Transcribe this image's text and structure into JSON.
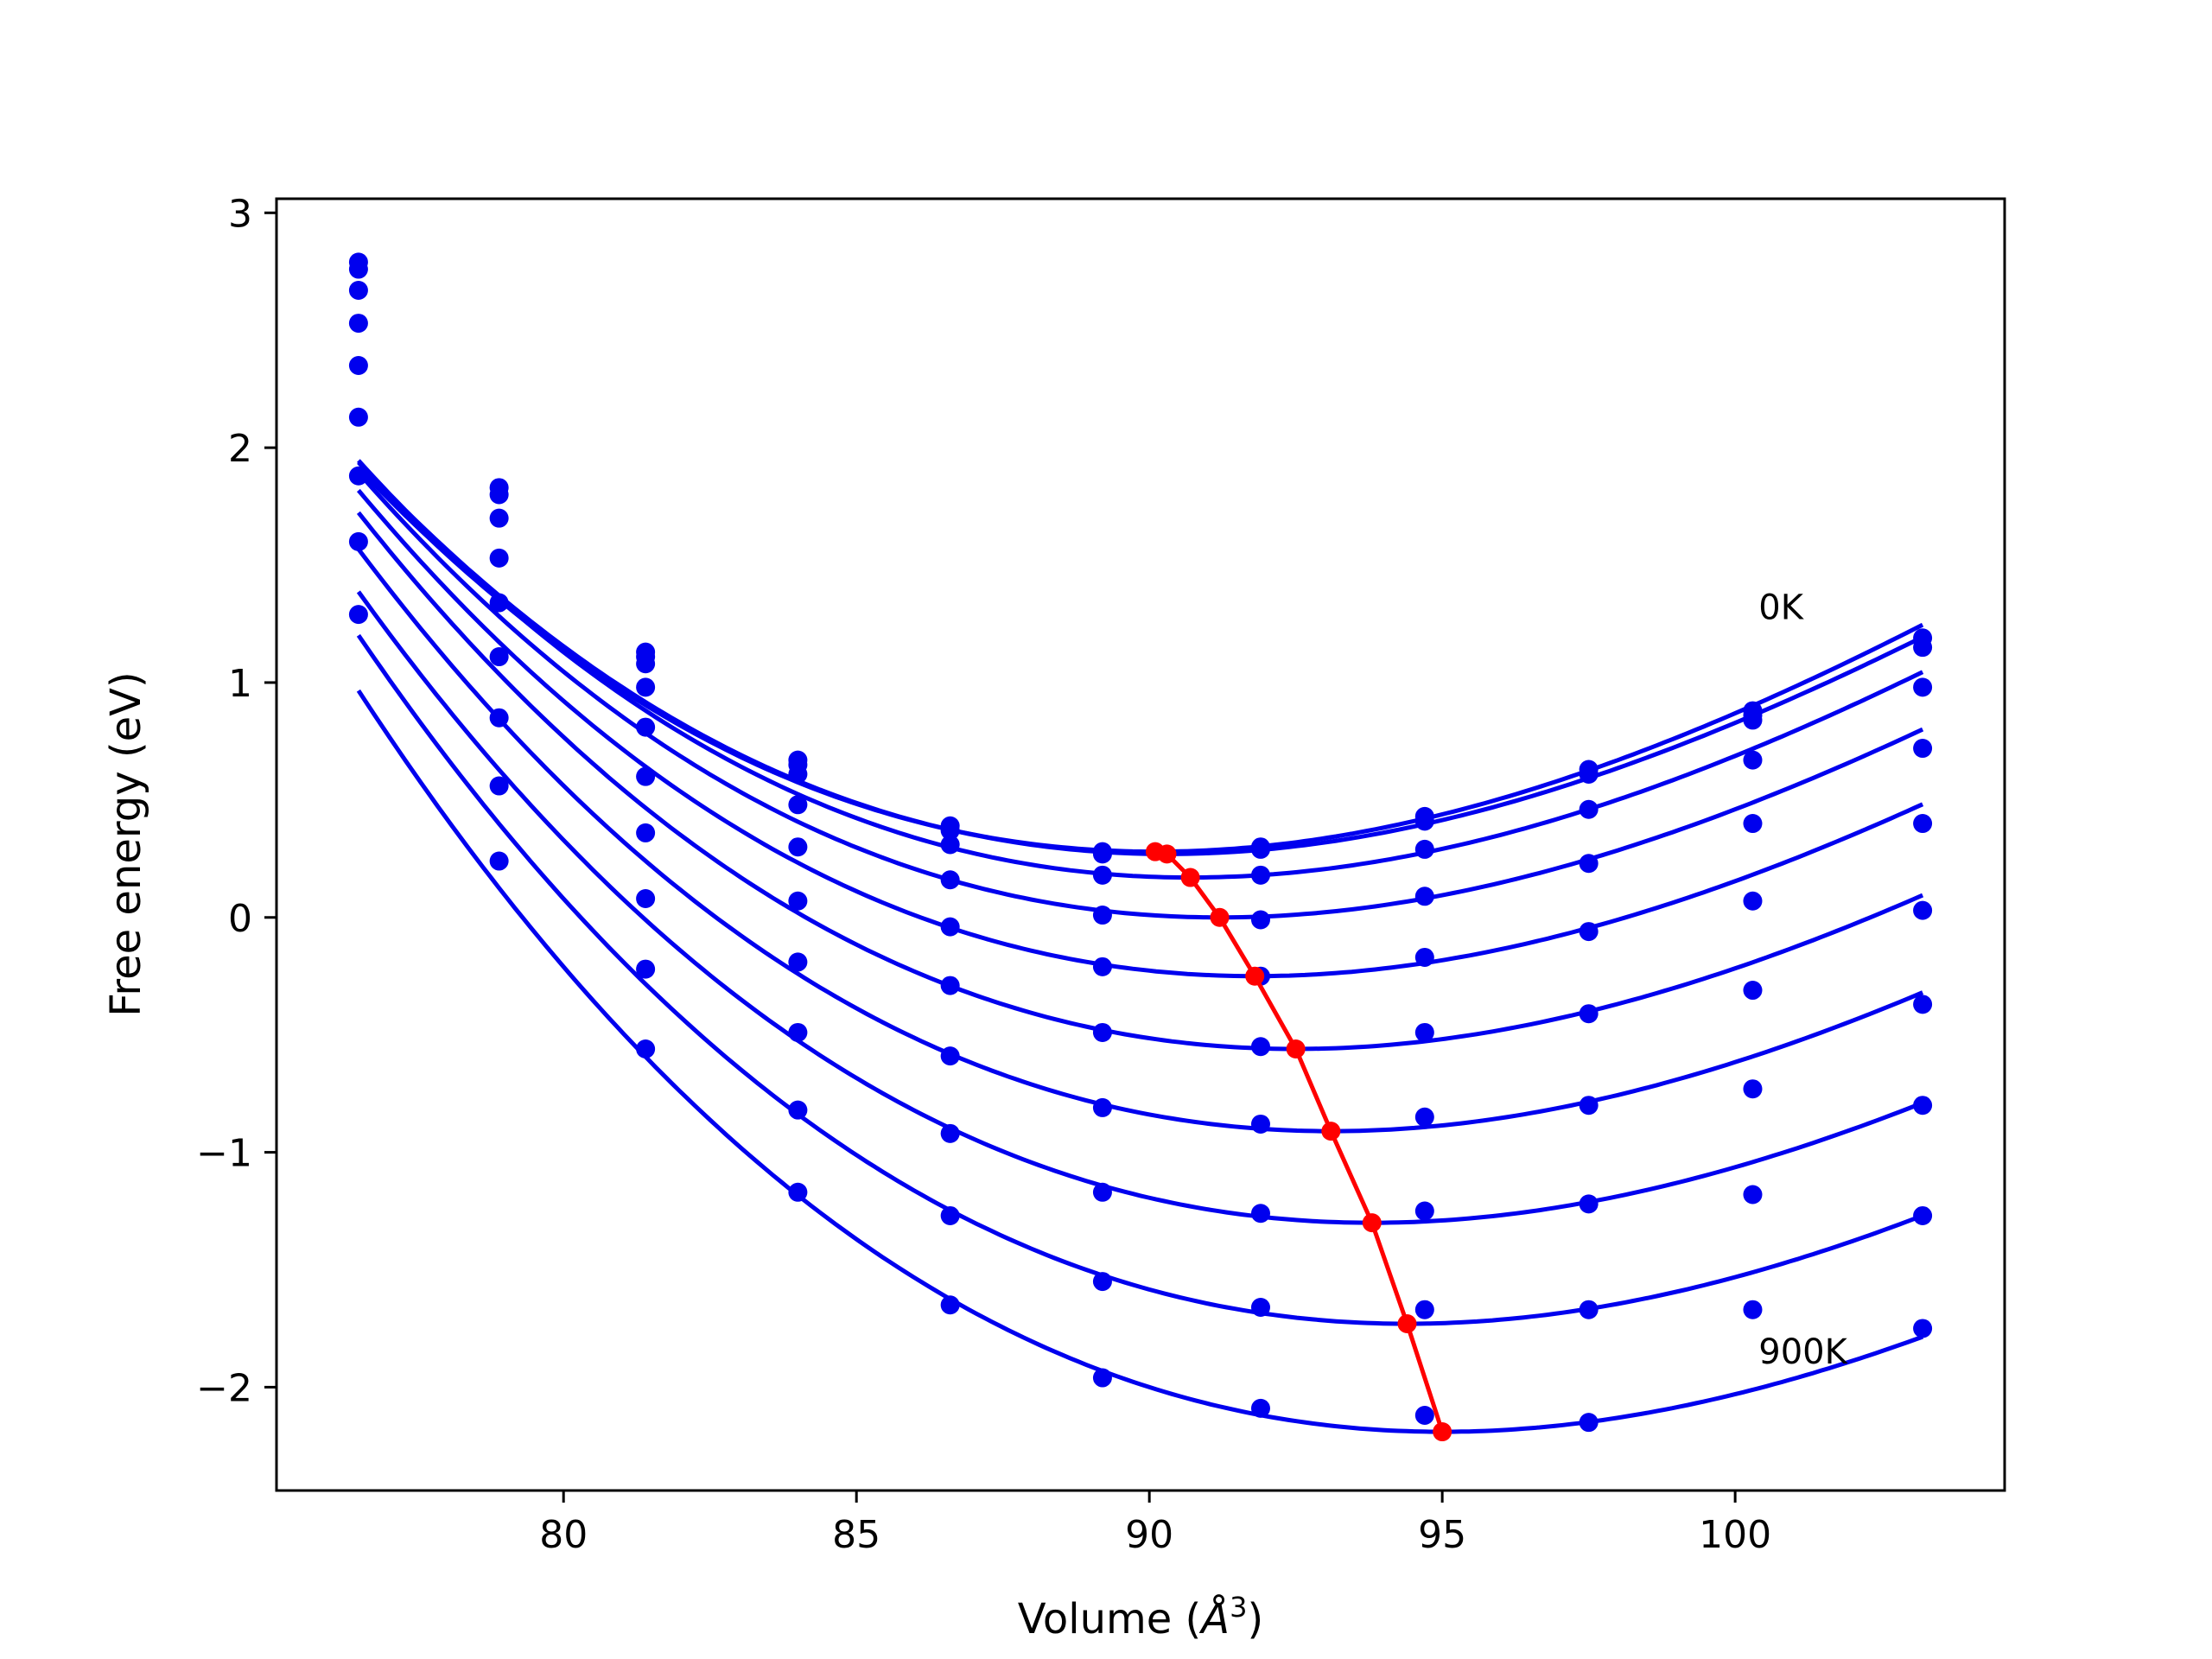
{
  "chart_data": {
    "type": "line",
    "title": "",
    "xlabel": "Volume (",
    "xlabel_unit_base": "Å",
    "xlabel_unit_exp": "3",
    "xlabel_close": ")",
    "ylabel": "Free energy (eV)",
    "xlim": [
      75.1,
      104.6
    ],
    "ylim": [
      -2.44,
      3.06
    ],
    "xticks": [
      80,
      85,
      90,
      95,
      100
    ],
    "yticks": [
      -2,
      -1,
      0,
      1,
      2,
      3
    ],
    "xtick_labels": [
      "80",
      "85",
      "90",
      "95",
      "100"
    ],
    "ytick_labels": [
      "−2",
      "−1",
      "0",
      "1",
      "2",
      "3"
    ],
    "grid": false,
    "colors": {
      "curves": "#0000ee",
      "points": "#0000ee",
      "minimum_path": "#ff0000",
      "axes": "#000000"
    },
    "annotations": [
      {
        "text": "0K",
        "x": 100.4,
        "y": 1.27
      },
      {
        "text": "900K",
        "x": 100.4,
        "y": -1.9
      }
    ],
    "volumes": [
      76.5,
      78.9,
      81.4,
      84.0,
      86.6,
      89.2,
      91.9,
      94.7,
      97.5,
      100.3,
      103.2
    ],
    "series": [
      {
        "fit": [
          0.28,
          90.1,
          0.0072,
          0.00012
        ],
        "points": [
          2.79,
          1.83,
          1.13,
          0.67,
          0.39,
          0.28,
          0.3,
          0.43,
          0.63,
          0.88,
          1.19
        ]
      },
      {
        "fit": [
          0.27,
          90.3,
          0.0071,
          0.00012
        ],
        "points": [
          2.76,
          1.8,
          1.11,
          0.65,
          0.37,
          0.27,
          0.29,
          0.41,
          0.61,
          0.86,
          1.15
        ]
      },
      {
        "fit": [
          0.17,
          90.7,
          0.0071,
          0.00012
        ],
        "points": [
          2.67,
          1.7,
          1.08,
          0.61,
          0.31,
          0.18,
          0.18,
          0.29,
          0.46,
          0.84,
          0.98
        ]
      },
      {
        "fit": [
          0.0,
          91.2,
          0.007,
          0.00012
        ],
        "points": [
          2.53,
          1.53,
          0.98,
          0.48,
          0.16,
          0.01,
          -0.01,
          0.09,
          0.23,
          0.67,
          0.72
        ]
      },
      {
        "fit": [
          -0.25,
          91.8,
          0.007,
          0.00012
        ],
        "points": [
          2.35,
          1.34,
          0.81,
          0.3,
          -0.04,
          -0.21,
          -0.25,
          -0.17,
          -0.06,
          0.4,
          0.4
        ]
      },
      {
        "fit": [
          -0.56,
          92.5,
          0.007,
          0.00012
        ],
        "points": [
          2.13,
          1.11,
          0.6,
          0.07,
          -0.29,
          -0.49,
          -0.55,
          -0.49,
          -0.41,
          0.07,
          0.03
        ]
      },
      {
        "fit": [
          -0.91,
          93.1,
          0.007,
          0.00012
        ],
        "points": [
          1.88,
          0.85,
          0.36,
          -0.19,
          -0.59,
          -0.81,
          -0.88,
          -0.85,
          -0.8,
          -0.31,
          -0.37
        ]
      },
      {
        "fit": [
          -1.3,
          93.8,
          0.0069,
          0.00012
        ],
        "points": [
          1.6,
          0.56,
          0.08,
          -0.49,
          -0.92,
          -1.17,
          -1.26,
          -1.25,
          -1.22,
          -0.73,
          -0.8
        ]
      },
      {
        "fit": [
          -1.73,
          94.4,
          0.007,
          0.00012
        ],
        "points": [
          1.29,
          0.24,
          -0.22,
          -0.82,
          -1.27,
          -1.55,
          -1.66,
          -1.67,
          -1.67,
          -1.18,
          -1.27
        ]
      },
      {
        "fit": [
          -2.19,
          95.0,
          0.007,
          0.00012
        ],
        "points": [
          null,
          null,
          -0.56,
          -1.17,
          -1.65,
          -1.96,
          -2.09,
          -2.12,
          -2.15,
          -1.67,
          -1.75
        ]
      }
    ],
    "minimum_path": {
      "x": [
        90.1,
        90.3,
        90.7,
        91.2,
        91.8,
        92.5,
        93.1,
        93.8,
        94.4,
        95.0
      ],
      "y": [
        0.28,
        0.27,
        0.17,
        0.0,
        -0.25,
        -0.56,
        -0.91,
        -1.3,
        -1.73,
        -2.19
      ]
    },
    "curve_x_range": [
      76.5,
      103.2
    ]
  }
}
